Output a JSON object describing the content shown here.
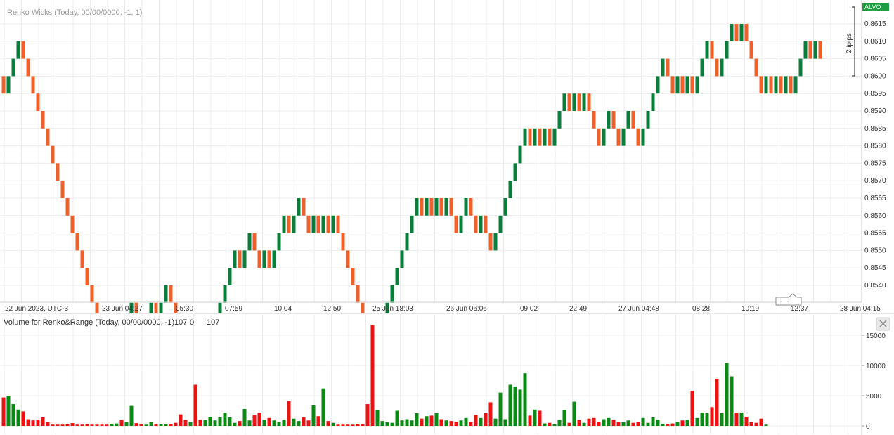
{
  "chart_data": [
    {
      "type": "renko",
      "title": "Renko Wicks (Today, 00/00/0000, -1, 1)",
      "symbol_tag": "ALVO",
      "box_size": 0.0005,
      "box_size_label": "2 ipips",
      "ylim": [
        0.8535,
        0.8618
      ],
      "y_ticks": [
        "0.8615",
        "0.8610",
        "0.8605",
        "0.8600",
        "0.8595",
        "0.8590",
        "0.8585",
        "0.8580",
        "0.8575",
        "0.8570",
        "0.8565",
        "0.8560",
        "0.8555",
        "0.8550",
        "0.8545",
        "0.8540"
      ],
      "x_tick_labels": [
        "22 Jun 2023, UTC-3",
        "23 Jun 04:27",
        "05:30",
        "07:59",
        "10:04",
        "12:50",
        "25 Jun 18:03",
        "26 Jun 06:06",
        "09:02",
        "22:49",
        "27 Jun 04:48",
        "08:28",
        "10:19",
        "12:37",
        "28 Jun 04:15"
      ],
      "directions": "DUUUDDDDDDDDDDDDDDDDDDUUDUUDDUUDUUDDDDUDDUUUUUUUDUUDDUDUUUDUUDDUDUDUDDDDDDDDUUUUUUUUUDUDUDUDDUUDDUDDUUUUUUUDUDUDUUUDUDUDDDUUDDUUDDUUUUUDDUDUDUUUDDUUUDUDDDDUDUDUDUUUDUD",
      "start_open": 0.86,
      "colors": {
        "up": "#0b7d3a",
        "down": "#f0602a"
      }
    },
    {
      "type": "bar",
      "title": "Volume for Renko&Range (Today, 00/00/0000, -1)",
      "legend_values": [
        {
          "text": "107",
          "color": "#19c3d6"
        },
        {
          "text": "0",
          "color": "#0b8f1e"
        },
        {
          "text": "107",
          "color": "#ff1a1a"
        }
      ],
      "ylim": [
        0,
        17500
      ],
      "y_ticks": [
        "15000",
        "10000",
        "5000",
        "0"
      ],
      "colors": {
        "up": "#0a8a12",
        "down": "#f01010"
      },
      "values": [
        4700,
        5000,
        3600,
        2700,
        2400,
        1100,
        900,
        1000,
        1400,
        600,
        200,
        200,
        200,
        250,
        450,
        200,
        200,
        350,
        200,
        200,
        200,
        200,
        350,
        400,
        1000,
        700,
        3300,
        450,
        250,
        200,
        600,
        250,
        350,
        350,
        300,
        500,
        1900,
        1000,
        600,
        6800,
        1000,
        1000,
        1500,
        900,
        1400,
        2200,
        1400,
        500,
        800,
        2800,
        900,
        1800,
        2200,
        1000,
        1300,
        900,
        700,
        1000,
        4100,
        1200,
        800,
        1400,
        900,
        3400,
        1600,
        6200,
        800,
        500,
        200,
        200,
        200,
        200,
        300,
        300,
        3600,
        16700,
        2600,
        800,
        600,
        500,
        2500,
        900,
        1100,
        900,
        2100,
        1200,
        1600,
        1700,
        2100,
        1100,
        900,
        800,
        600,
        900,
        1300,
        700,
        1800,
        1300,
        2100,
        3900,
        1200,
        5500,
        1100,
        6800,
        6500,
        6000,
        8700,
        1700,
        2700,
        2500,
        400,
        500,
        300,
        1000,
        2600,
        500,
        4000,
        1000,
        500,
        1200,
        1300,
        700,
        1100,
        1300,
        1000,
        700,
        600,
        900,
        500,
        600,
        1300,
        500,
        1400,
        1000,
        300,
        300,
        400,
        700,
        900,
        1000,
        5800,
        1300,
        2200,
        2100,
        3100,
        7800,
        2100,
        10400,
        8200,
        2200,
        2200,
        1500,
        600,
        500,
        1200,
        200
      ]
    }
  ]
}
